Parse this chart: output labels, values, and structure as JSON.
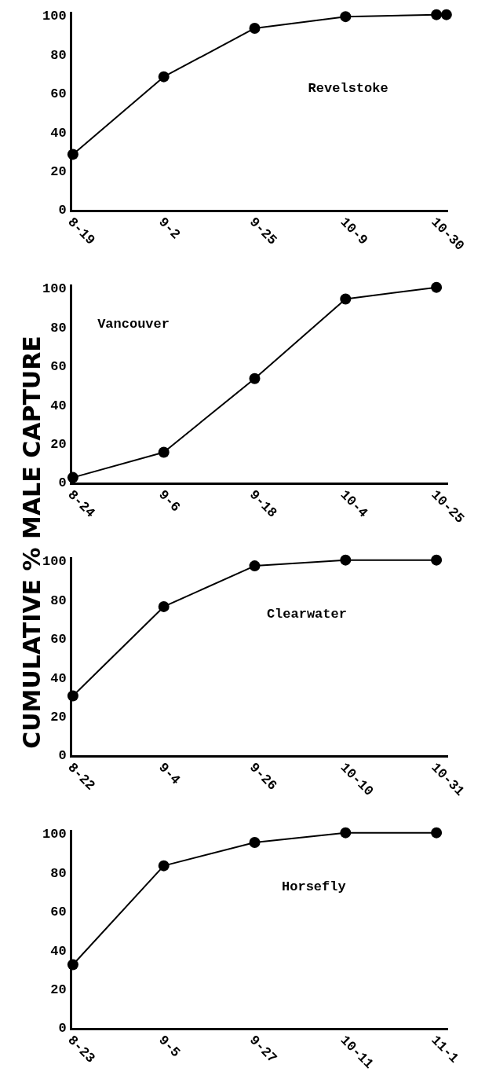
{
  "chart_data": [
    {
      "type": "line",
      "ylabel": "CUMULATIVE % MALE CAPTURE",
      "annotations": [
        "Revelstoke"
      ],
      "marker": "circle",
      "line_style": "solid",
      "grid": false,
      "legend": false,
      "categories": [
        "8-19",
        "9-2",
        "9-25",
        "10-9",
        "10-30"
      ],
      "ylim": [
        0,
        102
      ],
      "yticks": [
        0,
        20,
        40,
        60,
        80,
        100
      ],
      "series": [
        {
          "color": "#000000",
          "values": [
            29,
            69,
            94,
            100,
            101
          ]
        },
        {
          "type": "scatter",
          "color": "#000000",
          "values": [
            null,
            null,
            null,
            null,
            101
          ]
        }
      ]
    },
    {
      "type": "line",
      "annotations": [
        "Vancouver"
      ],
      "marker": "circle",
      "line_style": "solid",
      "grid": false,
      "legend": false,
      "categories": [
        "8-24",
        "9-6",
        "9-18",
        "10-4",
        "10-25"
      ],
      "ylim": [
        0,
        102
      ],
      "yticks": [
        0,
        20,
        40,
        60,
        80,
        100
      ],
      "series": [
        {
          "color": "#000000",
          "values": [
            3,
            16,
            54,
            95,
            101
          ]
        }
      ]
    },
    {
      "type": "line",
      "annotations": [
        "Clearwater"
      ],
      "marker": "circle",
      "line_style": "solid",
      "grid": false,
      "legend": false,
      "categories": [
        "8-22",
        "9-4",
        "9-26",
        "10-10",
        "10-31"
      ],
      "ylim": [
        0,
        102
      ],
      "yticks": [
        0,
        20,
        40,
        60,
        80,
        100
      ],
      "series": [
        {
          "color": "#000000",
          "values": [
            31,
            77,
            98,
            101,
            101
          ]
        }
      ]
    },
    {
      "type": "line",
      "annotations": [
        "Horsefly"
      ],
      "marker": "circle",
      "line_style": "solid",
      "grid": false,
      "legend": false,
      "categories": [
        "8-23",
        "9-5",
        "9-27",
        "10-11",
        "11-1"
      ],
      "ylim": [
        0,
        102
      ],
      "yticks": [
        0,
        20,
        40,
        60,
        80,
        100
      ],
      "series": [
        {
          "color": "#000000",
          "values": [
            33,
            84,
            96,
            101,
            101
          ]
        }
      ]
    }
  ]
}
